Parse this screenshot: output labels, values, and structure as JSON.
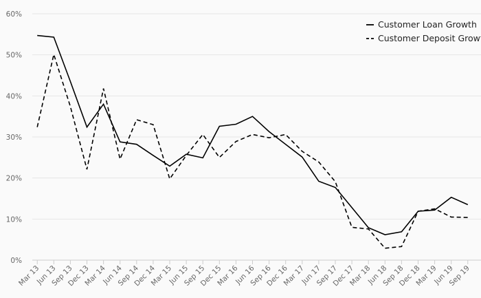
{
  "chart_data": {
    "type": "line",
    "title": "",
    "xlabel": "",
    "ylabel": "",
    "ylim": [
      0,
      60
    ],
    "y_ticks": [
      "0%",
      "10%",
      "20%",
      "30%",
      "40%",
      "50%",
      "60%"
    ],
    "categories": [
      "Mar 13",
      "Jun 13",
      "Sep 13",
      "Dec 13",
      "Mar 14",
      "Jun 14",
      "Sep 14",
      "Dec 14",
      "Mar 15",
      "Jun 15",
      "Sep 15",
      "Dec 15",
      "Mar 16",
      "Jun 16",
      "Sep 16",
      "Dec 16",
      "Mar 17",
      "Jun 17",
      "Sep 17",
      "Dec 17",
      "Mar 18",
      "Jun 18",
      "Sep 18",
      "Dec 18",
      "Mar 19",
      "Jun 19",
      "Sep 19"
    ],
    "grid": "horizontal",
    "legend_position": "top-right",
    "series": [
      {
        "name": "Customer Loan Growth",
        "style": "solid",
        "color": "#000000",
        "values": [
          54.7,
          54.3,
          43.5,
          32.4,
          38.0,
          28.8,
          28.2,
          25.5,
          22.9,
          25.8,
          24.9,
          32.6,
          33.1,
          35.0,
          31.3,
          28.2,
          25.1,
          19.2,
          17.7,
          12.8,
          7.9,
          6.2,
          6.9,
          11.9,
          12.2,
          15.3,
          13.5
        ]
      },
      {
        "name": "Customer Deposit Growth",
        "style": "dashed",
        "color": "#000000",
        "values": [
          32.4,
          50.1,
          37.4,
          22.1,
          41.8,
          24.6,
          34.2,
          33.0,
          19.8,
          25.5,
          30.6,
          25.0,
          28.9,
          30.6,
          29.8,
          30.6,
          26.5,
          23.9,
          19.1,
          8.0,
          7.6,
          2.9,
          3.3,
          11.9,
          12.5,
          10.5,
          10.4
        ]
      }
    ]
  }
}
